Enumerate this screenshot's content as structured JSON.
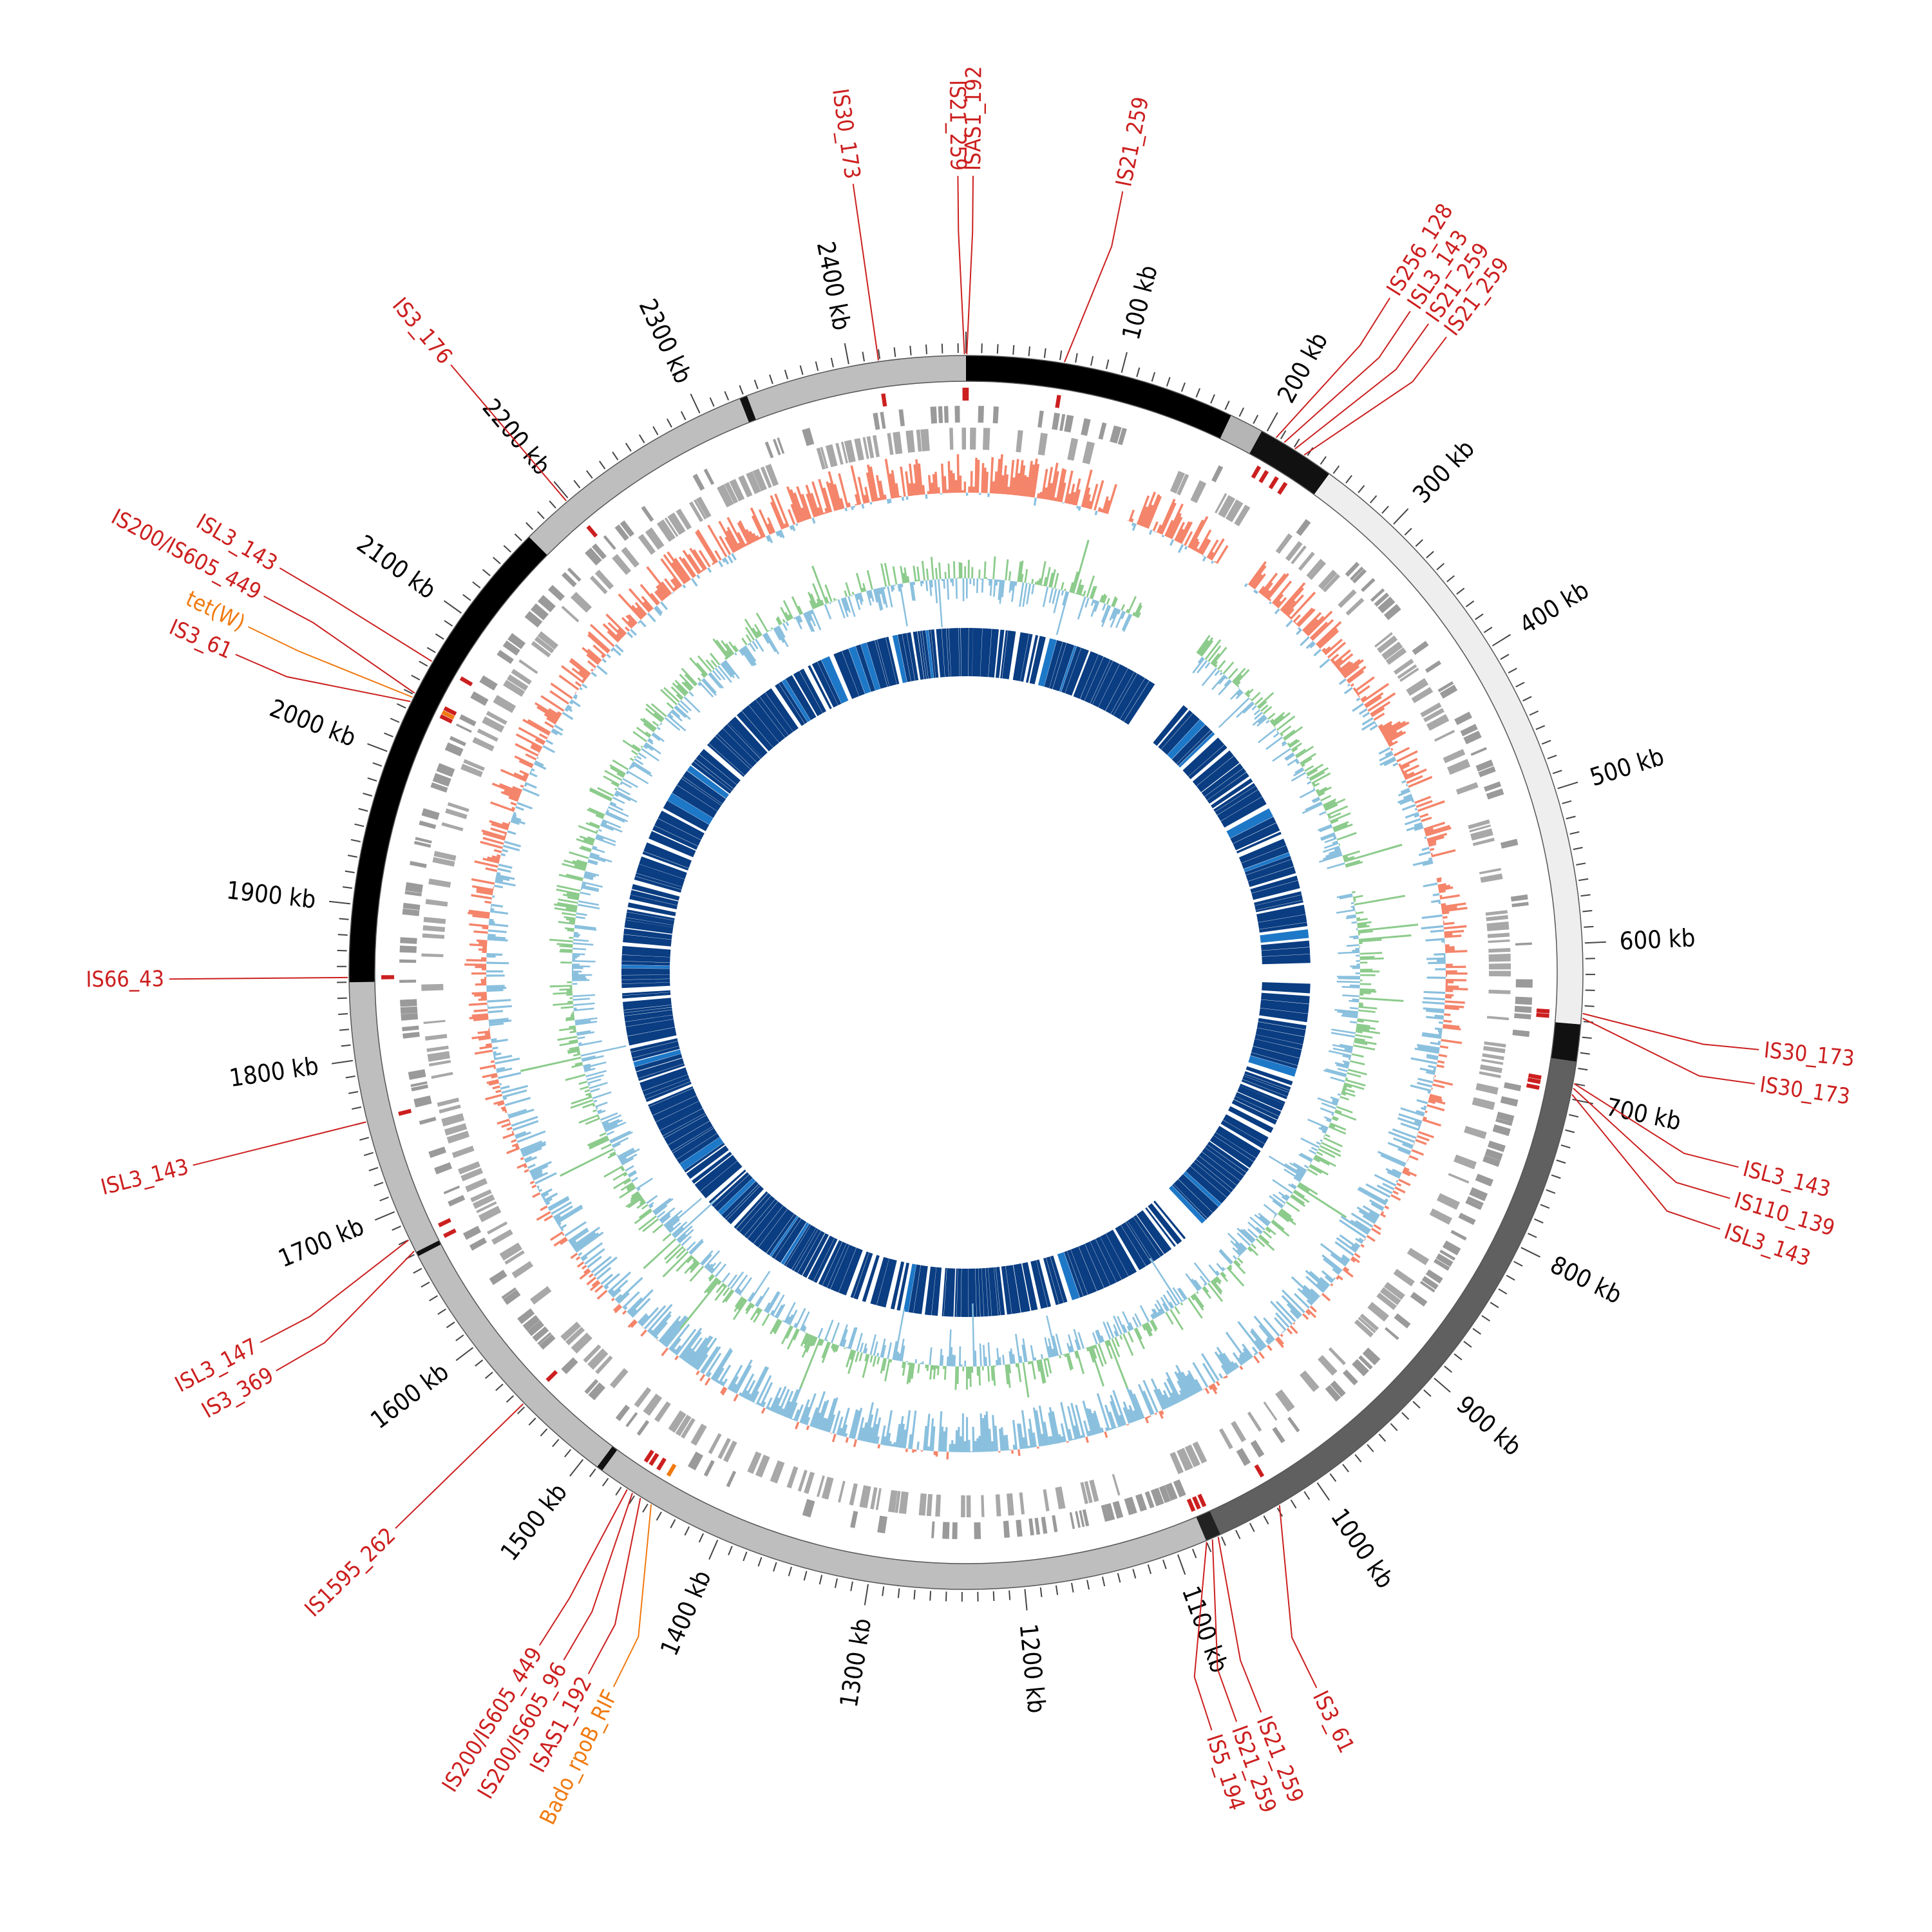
{
  "genome": {
    "length_bp": 2475000,
    "colors": {
      "label_red": "#cc1f1f",
      "label_orange": "#f07a10",
      "gene_gray": "#9a9a9a",
      "skew_pos": "#f4846a",
      "skew_neg": "#8ac0de",
      "gc_pos": "#8ccb8c",
      "gc_neg": "#8ac0de",
      "inner_blue": "#0a3d82",
      "inner_blue_light": "#1e78c8"
    },
    "contigs": [
      {
        "start": 0,
        "end": 175000,
        "shade": "#000000"
      },
      {
        "start": 175000,
        "end": 197000,
        "shade": "#b5b5b5"
      },
      {
        "start": 197000,
        "end": 248000,
        "shade": "#111111"
      },
      {
        "start": 248000,
        "end": 652000,
        "shade": "#eeeeee"
      },
      {
        "start": 652000,
        "end": 676000,
        "shade": "#111111"
      },
      {
        "start": 676000,
        "end": 1070000,
        "shade": "#606060"
      },
      {
        "start": 1070000,
        "end": 1080000,
        "shade": "#222222"
      },
      {
        "start": 1080000,
        "end": 1486000,
        "shade": "#bebebe"
      },
      {
        "start": 1486000,
        "end": 1490000,
        "shade": "#111111"
      },
      {
        "start": 1490000,
        "end": 1668000,
        "shade": "#bebebe"
      },
      {
        "start": 1668000,
        "end": 1671000,
        "shade": "#111111"
      },
      {
        "start": 1671000,
        "end": 1850000,
        "shade": "#bebebe"
      },
      {
        "start": 1850000,
        "end": 2165000,
        "shade": "#000000"
      },
      {
        "start": 2165000,
        "end": 2327000,
        "shade": "#bebebe"
      },
      {
        "start": 2327000,
        "end": 2332000,
        "shade": "#111111"
      },
      {
        "start": 2332000,
        "end": 2475000,
        "shade": "#bebebe"
      }
    ],
    "tick_labels": [
      {
        "pos": 100000,
        "label": "100 kb"
      },
      {
        "pos": 200000,
        "label": "200 kb"
      },
      {
        "pos": 300000,
        "label": "300 kb"
      },
      {
        "pos": 400000,
        "label": "400 kb"
      },
      {
        "pos": 500000,
        "label": "500 kb"
      },
      {
        "pos": 600000,
        "label": "600 kb"
      },
      {
        "pos": 700000,
        "label": "700 kb"
      },
      {
        "pos": 800000,
        "label": "800 kb"
      },
      {
        "pos": 900000,
        "label": "900 kb"
      },
      {
        "pos": 1000000,
        "label": "1000 kb"
      },
      {
        "pos": 1100000,
        "label": "1100 kb"
      },
      {
        "pos": 1200000,
        "label": "1200 kb"
      },
      {
        "pos": 1300000,
        "label": "1300 kb"
      },
      {
        "pos": 1400000,
        "label": "1400 kb"
      },
      {
        "pos": 1500000,
        "label": "1500 kb"
      },
      {
        "pos": 1600000,
        "label": "1600 kb"
      },
      {
        "pos": 1700000,
        "label": "1700 kb"
      },
      {
        "pos": 1800000,
        "label": "1800 kb"
      },
      {
        "pos": 1900000,
        "label": "1900 kb"
      },
      {
        "pos": 2000000,
        "label": "2000 kb"
      },
      {
        "pos": 2100000,
        "label": "2100 kb"
      },
      {
        "pos": 2200000,
        "label": "2200 kb"
      },
      {
        "pos": 2300000,
        "label": "2300 kb"
      },
      {
        "pos": 2400000,
        "label": "2400 kb"
      }
    ],
    "features": [
      {
        "pos": 2419000,
        "label": "IS30_173",
        "color": "#cc1f1f",
        "label_pos": 2419000
      },
      {
        "pos": 2474000,
        "label": "IS21_259",
        "color": "#cc1f1f",
        "label_pos": 2471000
      },
      {
        "pos": 500,
        "label": "ISAS1_192",
        "color": "#cc1f1f",
        "label_pos": 3500
      },
      {
        "pos": 63000,
        "label": "IS21_259",
        "color": "#cc1f1f",
        "label_pos": 78000
      },
      {
        "pos": 207000,
        "label": "IS256_128",
        "color": "#cc1f1f",
        "label_pos": 221000
      },
      {
        "pos": 213000,
        "label": "ISL3_143",
        "color": "#cc1f1f",
        "label_pos": 233000
      },
      {
        "pos": 221000,
        "label": "IS21_259",
        "color": "#cc1f1f",
        "label_pos": 244000
      },
      {
        "pos": 228000,
        "label": "IS21_259",
        "color": "#cc1f1f",
        "label_pos": 255000
      },
      {
        "pos": 645000,
        "label": "IS30_173",
        "color": "#cc1f1f",
        "label_pos": 657000
      },
      {
        "pos": 648000,
        "label": "IS30_173",
        "color": "#cc1f1f",
        "label_pos": 674000
      },
      {
        "pos": 690000,
        "label": "ISL3_143",
        "color": "#cc1f1f",
        "label_pos": 716000
      },
      {
        "pos": 693000,
        "label": "IS110_139",
        "color": "#cc1f1f",
        "label_pos": 732000
      },
      {
        "pos": 697000,
        "label": "ISL3_143",
        "color": "#cc1f1f",
        "label_pos": 748000
      },
      {
        "pos": 1028000,
        "label": "IS3_61",
        "color": "#cc1f1f",
        "label_pos": 1058000
      },
      {
        "pos": 1072000,
        "label": "IS21_259",
        "color": "#cc1f1f",
        "label_pos": 1088000
      },
      {
        "pos": 1076000,
        "label": "IS21_259",
        "color": "#cc1f1f",
        "label_pos": 1101000
      },
      {
        "pos": 1080000,
        "label": "IS5_194",
        "color": "#cc1f1f",
        "label_pos": 1114000
      },
      {
        "pos": 1448000,
        "label": "Bado_rpoB_RIF",
        "color": "#f07a10",
        "label_pos": 1418000
      },
      {
        "pos": 1456000,
        "label": "ISAS1_192",
        "color": "#cc1f1f",
        "label_pos": 1432000
      },
      {
        "pos": 1462000,
        "label": "IS200/IS605_96",
        "color": "#cc1f1f",
        "label_pos": 1446000
      },
      {
        "pos": 1466000,
        "label": "IS200/IS605_449",
        "color": "#cc1f1f",
        "label_pos": 1460000
      },
      {
        "pos": 1552000,
        "label": "IS1595_262",
        "color": "#cc1f1f",
        "label_pos": 1552000
      },
      {
        "pos": 1672000,
        "label": "IS3_369",
        "color": "#cc1f1f",
        "label_pos": 1650000
      },
      {
        "pos": 1680000,
        "label": "ISL3_147",
        "color": "#cc1f1f",
        "label_pos": 1666000
      },
      {
        "pos": 1760000,
        "label": "ISL3_143",
        "color": "#cc1f1f",
        "label_pos": 1760000
      },
      {
        "pos": 1853000,
        "label": "IS66_43",
        "color": "#cc1f1f",
        "label_pos": 1853000
      },
      {
        "pos": 2035000,
        "label": "IS3_61",
        "color": "#cc1f1f",
        "label_pos": 2018000
      },
      {
        "pos": 2038000,
        "label": "tet(W)",
        "color": "#f07a10",
        "label_pos": 2033000
      },
      {
        "pos": 2041000,
        "label": "IS200/IS605_449",
        "color": "#cc1f1f",
        "label_pos": 2050000
      },
      {
        "pos": 2064000,
        "label": "ISL3_143",
        "color": "#cc1f1f",
        "label_pos": 2066000
      },
      {
        "pos": 2198000,
        "label": "IS3_176",
        "color": "#cc1f1f",
        "label_pos": 2198000
      }
    ]
  }
}
